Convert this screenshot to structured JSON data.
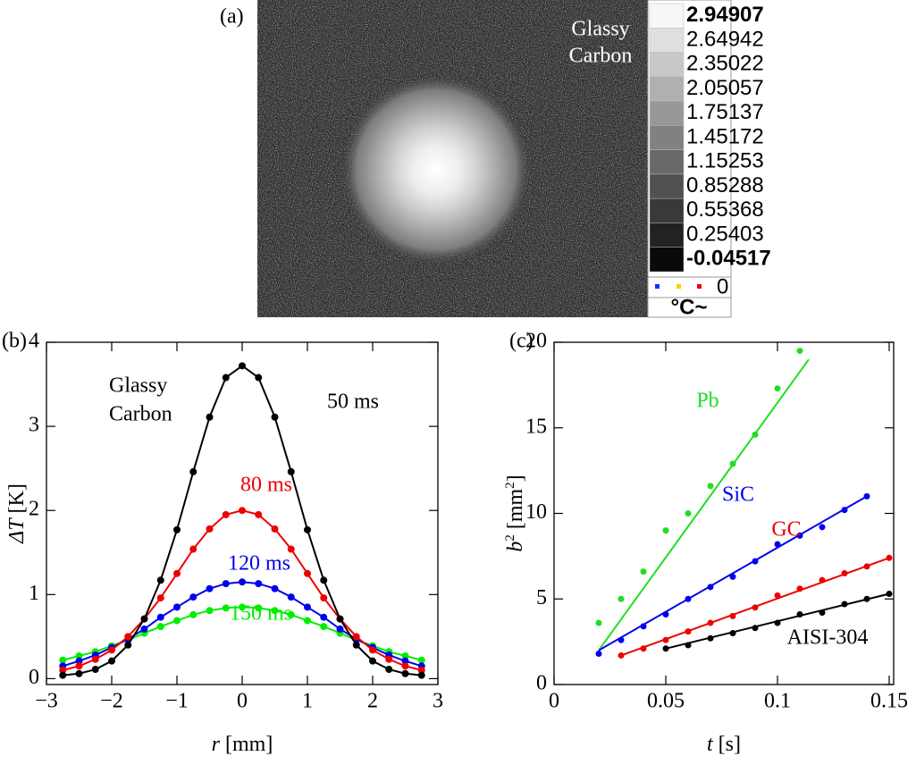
{
  "chart_data": [
    {
      "type": "image",
      "panel": "(a)",
      "annotation": [
        "Glassy",
        "Carbon"
      ],
      "colorbar_ticks": [
        2.94907,
        2.64942,
        2.35022,
        2.05057,
        1.75137,
        1.45172,
        1.15253,
        0.85288,
        0.55368,
        0.25403,
        -0.04517
      ],
      "colorbar_legend": "0",
      "colorbar_unit": "°C~"
    },
    {
      "type": "scatter",
      "panel": "(b)",
      "annotation": [
        "Glassy",
        "Carbon"
      ],
      "xlabel": [
        "r",
        " [mm]"
      ],
      "ylabel": [
        "ΔT",
        " [K]"
      ],
      "xlim": [
        -3,
        3
      ],
      "ylim": [
        -0.07,
        4
      ],
      "xticks": [
        {
          "value": -3,
          "label": "−3"
        },
        {
          "value": -2,
          "label": "−2"
        },
        {
          "value": -1,
          "label": "−1"
        },
        0,
        1,
        2,
        3
      ],
      "yticks": [
        0,
        1,
        2,
        3,
        4
      ],
      "x": [
        -2.75,
        -2.5,
        -2.25,
        -2,
        -1.75,
        -1.5,
        -1.25,
        -1,
        -0.75,
        -0.5,
        -0.25,
        0,
        0.25,
        0.5,
        0.75,
        1,
        1.25,
        1.5,
        1.75,
        2,
        2.25,
        2.5,
        2.75
      ],
      "series": [
        {
          "name": "150 ms",
          "color": "#00ee00",
          "values": [
            0.22,
            0.27,
            0.32,
            0.39,
            0.46,
            0.54,
            0.62,
            0.69,
            0.76,
            0.81,
            0.84,
            0.85,
            0.84,
            0.81,
            0.76,
            0.69,
            0.62,
            0.54,
            0.46,
            0.39,
            0.32,
            0.27,
            0.22
          ]
        },
        {
          "name": "120 ms",
          "color": "#0000ee",
          "values": [
            0.15,
            0.21,
            0.28,
            0.37,
            0.47,
            0.59,
            0.73,
            0.85,
            0.97,
            1.07,
            1.13,
            1.15,
            1.13,
            1.07,
            0.97,
            0.85,
            0.73,
            0.59,
            0.47,
            0.37,
            0.28,
            0.21,
            0.15
          ]
        },
        {
          "name": "80 ms",
          "color": "#ee0000",
          "values": [
            0.1,
            0.15,
            0.23,
            0.34,
            0.5,
            0.71,
            0.96,
            1.25,
            1.54,
            1.78,
            1.95,
            2.0,
            1.95,
            1.78,
            1.54,
            1.25,
            0.96,
            0.71,
            0.5,
            0.34,
            0.23,
            0.15,
            0.1
          ]
        },
        {
          "name": "50 ms",
          "color": "#000000",
          "values": [
            0.04,
            0.06,
            0.11,
            0.21,
            0.4,
            0.71,
            1.17,
            1.77,
            2.46,
            3.11,
            3.58,
            3.72,
            3.58,
            3.11,
            2.46,
            1.77,
            1.17,
            0.71,
            0.4,
            0.21,
            0.11,
            0.06,
            0.04
          ]
        }
      ]
    },
    {
      "type": "scatter",
      "panel": "(c)",
      "xlabel": [
        "t",
        " [s]"
      ],
      "ylabel": [
        "b",
        "2",
        " [mm",
        "2",
        "]"
      ],
      "xlim": [
        0,
        0.152
      ],
      "ylim": [
        0,
        20
      ],
      "xticks": [
        0,
        0.05,
        0.1,
        0.15
      ],
      "yticks": [
        0,
        5,
        10,
        15,
        20
      ],
      "series": [
        {
          "name": "Pb",
          "color": "#22dd22",
          "x": [
            0.02,
            0.03,
            0.04,
            0.05,
            0.06,
            0.07,
            0.08,
            0.09,
            0.1,
            0.11
          ],
          "values": [
            3.6,
            5.0,
            6.6,
            9.0,
            10.0,
            11.6,
            12.9,
            14.6,
            17.3,
            19.5
          ],
          "fit_x": [
            0.02,
            0.114
          ],
          "fit_y": [
            2.0,
            19.0
          ]
        },
        {
          "name": "SiC",
          "color": "#0000ee",
          "x": [
            0.02,
            0.03,
            0.04,
            0.05,
            0.06,
            0.07,
            0.08,
            0.09,
            0.1,
            0.11,
            0.12,
            0.13,
            0.14
          ],
          "values": [
            1.8,
            2.6,
            3.4,
            4.1,
            5.0,
            5.7,
            6.3,
            7.2,
            8.2,
            8.7,
            9.2,
            10.2,
            11.0
          ],
          "fit_x": [
            0.02,
            0.14
          ],
          "fit_y": [
            2.0,
            11.0
          ]
        },
        {
          "name": "GC",
          "color": "#ee0000",
          "x": [
            0.03,
            0.04,
            0.05,
            0.06,
            0.07,
            0.08,
            0.09,
            0.1,
            0.11,
            0.12,
            0.13,
            0.14,
            0.15
          ],
          "values": [
            1.7,
            2.1,
            2.6,
            3.1,
            3.6,
            4.0,
            4.5,
            5.2,
            5.6,
            6.1,
            6.5,
            6.9,
            7.4
          ],
          "fit_x": [
            0.03,
            0.15
          ],
          "fit_y": [
            1.7,
            7.4
          ]
        },
        {
          "name": "AISI-304",
          "color": "#000000",
          "x": [
            0.05,
            0.06,
            0.07,
            0.08,
            0.09,
            0.1,
            0.11,
            0.12,
            0.13,
            0.14,
            0.15
          ],
          "values": [
            2.1,
            2.3,
            2.7,
            3.0,
            3.3,
            3.6,
            4.1,
            4.2,
            4.7,
            5.0,
            5.3
          ],
          "fit_x": [
            0.05,
            0.15
          ],
          "fit_y": [
            2.1,
            5.3
          ]
        }
      ]
    }
  ]
}
